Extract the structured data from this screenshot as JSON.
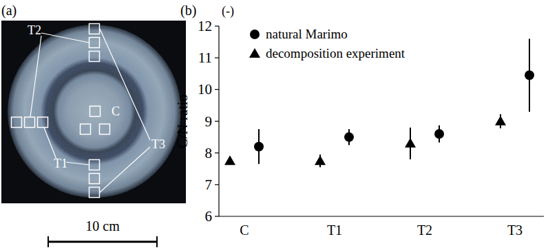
{
  "chart_data": {
    "type": "scatter",
    "title": "(b)",
    "ylabel": "C/N ratio",
    "yunit": "(-)",
    "categories": [
      "C",
      "T1",
      "T2",
      "T3"
    ],
    "series": [
      {
        "name": "natural Marimo",
        "color": "#000000",
        "marker": "circle",
        "values": [
          8.2,
          8.5,
          8.6,
          10.45
        ],
        "errors": [
          0.55,
          0.25,
          0.27,
          1.15
        ]
      },
      {
        "name": "decomposition experiment",
        "color": "#000000",
        "marker": "triangle",
        "values": [
          7.75,
          7.75,
          8.3,
          9.0
        ],
        "errors": [
          0,
          0.2,
          0.5,
          0.22
        ]
      }
    ],
    "ylim": [
      6,
      12
    ],
    "yticks": [
      6,
      7,
      8,
      9,
      10,
      11,
      12
    ],
    "grid": false,
    "legend": "top-left"
  },
  "panel_a": {
    "label": "(a)",
    "regions": [
      "C",
      "T1",
      "T2",
      "T3"
    ],
    "scale_bar": "10 cm"
  }
}
